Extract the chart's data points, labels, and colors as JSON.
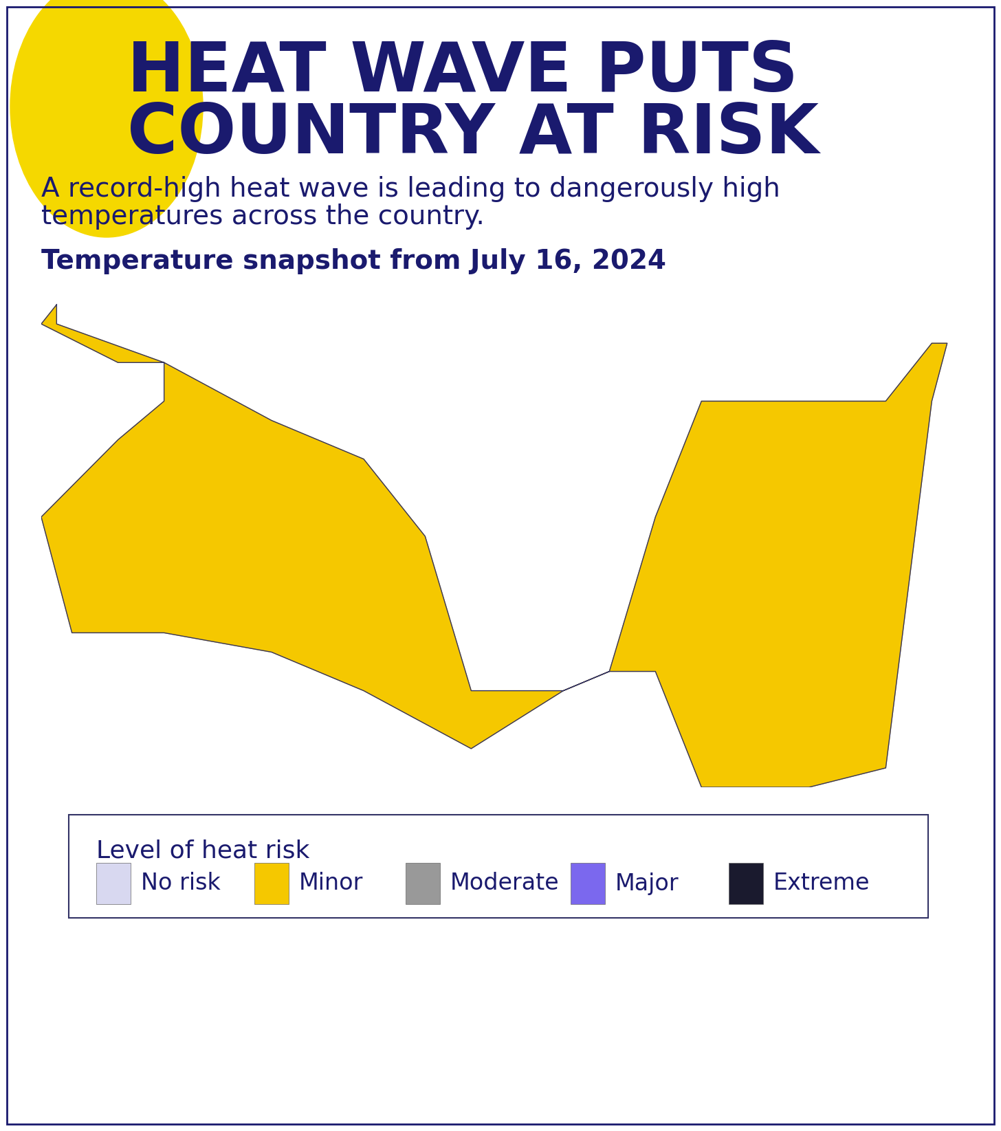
{
  "title_line1": "HEAT WAVE PUTS",
  "title_line2": "COUNTRY AT RISK",
  "title_color": "#1a1a6e",
  "circle_color": "#f5d800",
  "subtitle": "A record-high heat wave is leading to dangerously high\ntemperatures across the country.",
  "subtitle_color": "#1a1a6e",
  "snapshot_label": "Temperature snapshot from July 16, 2024",
  "snapshot_color": "#1a1a6e",
  "legend_title": "Level of heat risk",
  "legend_items": [
    "No risk",
    "Minor",
    "Moderate",
    "Major",
    "Extreme"
  ],
  "legend_colors": [
    "#d8d8f0",
    "#f5c800",
    "#999999",
    "#7b68ee",
    "#1a1a2e"
  ],
  "background_color": "#ffffff",
  "border_color": "#1a1a6e",
  "no_risk_color": "#d8d8f0",
  "minor_color": "#f5c800",
  "moderate_color": "#999999",
  "major_color": "#7b68ee",
  "extreme_color": "#1a1a2e",
  "map_border_color": "#333366"
}
